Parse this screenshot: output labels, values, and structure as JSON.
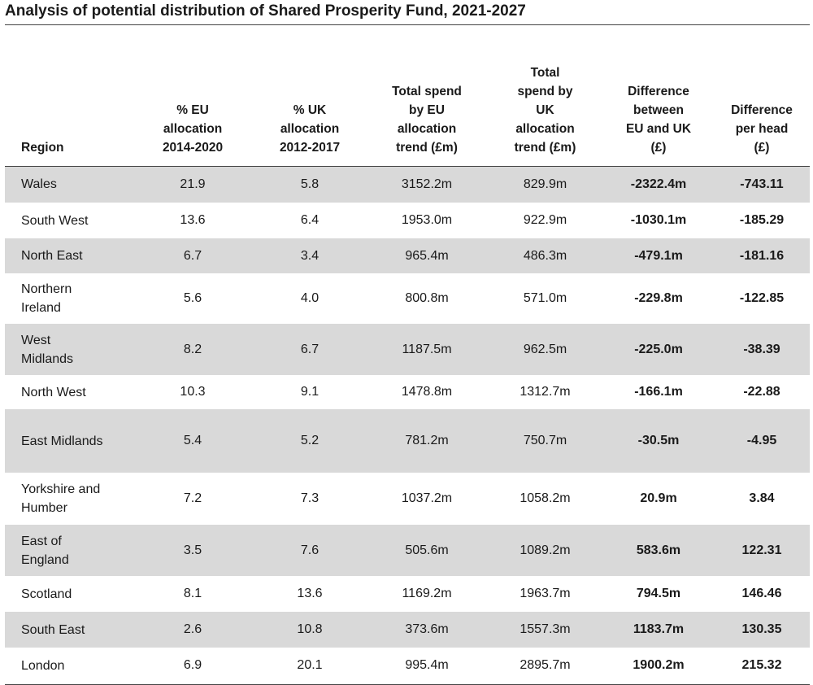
{
  "title": "Analysis of potential distribution of Shared Prosperity Fund, 2021-2027",
  "headers": [
    "Region",
    "% EU\nallocation\n2014-2020",
    "% UK\nallocation\n2012-2017",
    "Total spend\nby EU\nallocation\ntrend (£m)",
    "Total\nspend by\nUK\nallocation\ntrend (£m)",
    "Difference\nbetween\nEU and UK\n(£)",
    "Difference\nper head\n(£)"
  ],
  "rows": [
    {
      "region": "Wales",
      "eu_pct": "21.9",
      "uk_pct": "5.8",
      "eu_spend": "3152.2m",
      "uk_spend": "829.9m",
      "diff": "-2322.4m",
      "per_head": "-743.11"
    },
    {
      "region": "South West",
      "eu_pct": "13.6",
      "uk_pct": "6.4",
      "eu_spend": "1953.0m",
      "uk_spend": "922.9m",
      "diff": "-1030.1m",
      "per_head": "-185.29"
    },
    {
      "region": "North East",
      "eu_pct": "6.7",
      "uk_pct": "3.4",
      "eu_spend": "965.4m",
      "uk_spend": "486.3m",
      "diff": "-479.1m",
      "per_head": "-181.16"
    },
    {
      "region": "Northern\nIreland",
      "eu_pct": "5.6",
      "uk_pct": "4.0",
      "eu_spend": "800.8m",
      "uk_spend": "571.0m",
      "diff": "-229.8m",
      "per_head": "-122.85"
    },
    {
      "region": "West\nMidlands",
      "eu_pct": "8.2",
      "uk_pct": "6.7",
      "eu_spend": "1187.5m",
      "uk_spend": "962.5m",
      "diff": "-225.0m",
      "per_head": "-38.39"
    },
    {
      "region": "North West",
      "eu_pct": "10.3",
      "uk_pct": "9.1",
      "eu_spend": "1478.8m",
      "uk_spend": "1312.7m",
      "diff": "-166.1m",
      "per_head": "-22.88"
    },
    {
      "region": "East Midlands",
      "eu_pct": "5.4",
      "uk_pct": "5.2",
      "eu_spend": "781.2m",
      "uk_spend": "750.7m",
      "diff": "-30.5m",
      "per_head": "-4.95"
    },
    {
      "region": "Yorkshire and\nHumber",
      "eu_pct": "7.2",
      "uk_pct": "7.3",
      "eu_spend": "1037.2m",
      "uk_spend": "1058.2m",
      "diff": "20.9m",
      "per_head": "3.84"
    },
    {
      "region": "East of\nEngland",
      "eu_pct": "3.5",
      "uk_pct": "7.6",
      "eu_spend": "505.6m",
      "uk_spend": "1089.2m",
      "diff": "583.6m",
      "per_head": "122.31"
    },
    {
      "region": "Scotland",
      "eu_pct": "8.1",
      "uk_pct": "13.6",
      "eu_spend": "1169.2m",
      "uk_spend": "1963.7m",
      "diff": "794.5m",
      "per_head": "146.46"
    },
    {
      "region": "South East",
      "eu_pct": "2.6",
      "uk_pct": "10.8",
      "eu_spend": "373.6m",
      "uk_spend": "1557.3m",
      "diff": "1183.7m",
      "per_head": "130.35"
    },
    {
      "region": "London",
      "eu_pct": "6.9",
      "uk_pct": "20.1",
      "eu_spend": "995.4m",
      "uk_spend": "2895.7m",
      "diff": "1900.2m",
      "per_head": "215.32"
    }
  ],
  "colors": {
    "shade": "#d9d9d9",
    "rule": "#444444"
  }
}
